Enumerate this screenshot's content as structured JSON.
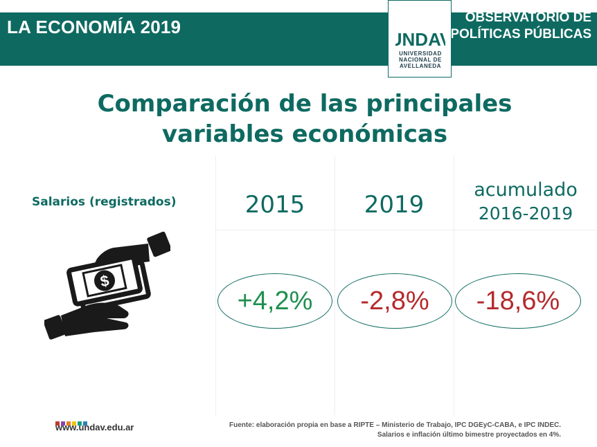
{
  "header": {
    "left_title": "LA ECONOMÍA 2019",
    "right_line1": "OBSERVATORIO DE",
    "right_line2": "POLÍTICAS PÚBLICAS",
    "logo_mark": "UNDAV",
    "logo_line1": "UNIVERSIDAD",
    "logo_line2": "NACIONAL DE",
    "logo_line3": "AVELLANEDA",
    "band_color": "#0e6a61"
  },
  "title": {
    "line1": "Comparación de las principales",
    "line2": "variables económicas"
  },
  "table": {
    "row_label": "Salarios (registrados)",
    "columns": [
      {
        "head": "2015",
        "value": "+4,2%",
        "value_color": "#1f8f4e"
      },
      {
        "head": "2019",
        "value": "-2,8%",
        "value_color": "#b5292c"
      },
      {
        "head_line1": "acumulado",
        "head_line2": "2016-2019",
        "value": "-18,6%",
        "value_color": "#b5292c"
      }
    ]
  },
  "icon": "hands-exchanging-money-icon",
  "footer": {
    "website": "www.undav.edu.ar",
    "dot_colors": [
      "#c0392b",
      "#8e44ad",
      "#e67e22",
      "#f1c40f",
      "#16a085",
      "#2980b9"
    ],
    "source_line1": "Fuente: elaboración propia en base a RIPTE – Ministerio de Trabajo, IPC DGEyC-CABA, e IPC INDEC.",
    "source_line2": "Salarios e inflación último bimestre proyectados en 4%."
  }
}
